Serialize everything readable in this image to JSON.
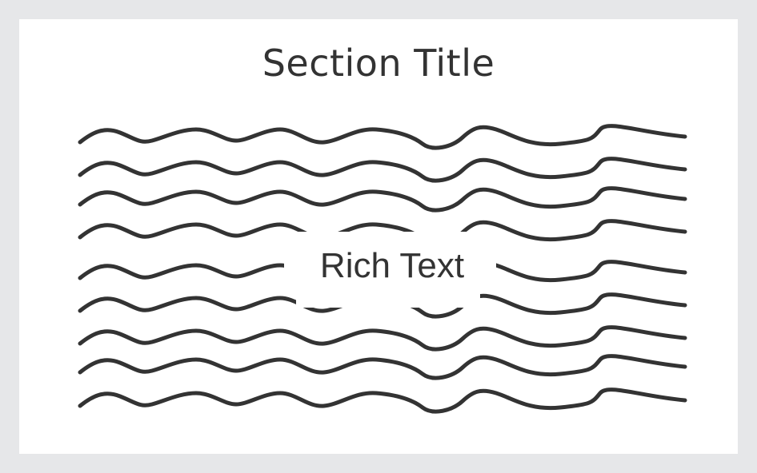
{
  "section": {
    "title": "Section Title"
  },
  "content": {
    "placeholder_text": "Rich Text",
    "line_count": 9
  },
  "colors": {
    "background": "#e6e7e9",
    "card": "#ffffff",
    "ink": "#333333"
  }
}
